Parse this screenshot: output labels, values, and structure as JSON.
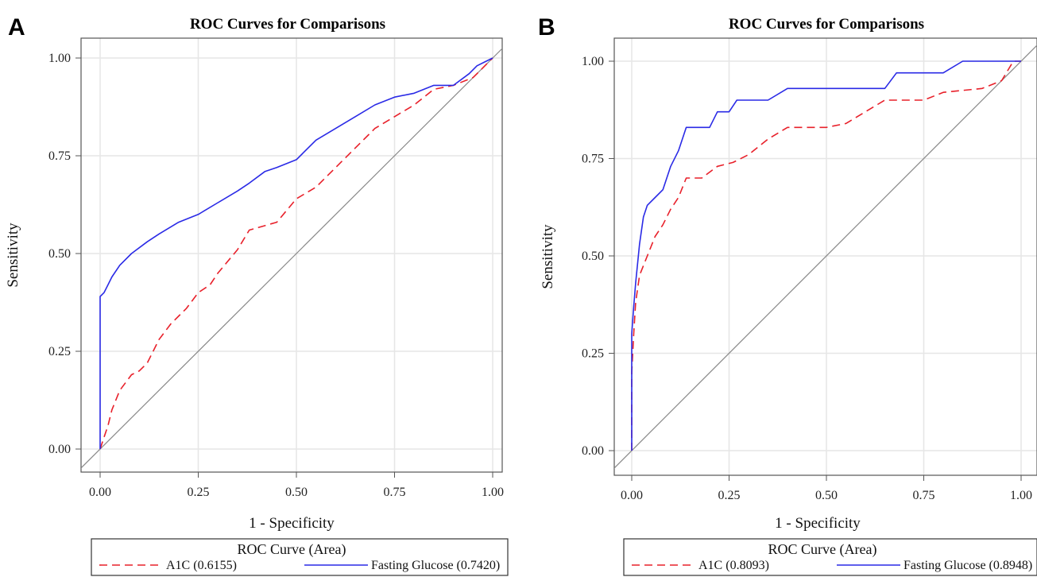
{
  "chart_data": [
    {
      "panel_label": "A",
      "type": "line",
      "title": "ROC Curves for Comparisons",
      "xlabel": "1 - Specificity",
      "ylabel": "Sensitivity",
      "xlim": [
        0,
        1
      ],
      "ylim": [
        0,
        1
      ],
      "x_ticks": [
        "0.00",
        "0.25",
        "0.50",
        "0.75",
        "1.00"
      ],
      "y_ticks": [
        "0.00",
        "0.25",
        "0.50",
        "0.75",
        "1.00"
      ],
      "grid": true,
      "reference_line": "diagonal",
      "legend_title": "ROC Curve (Area)",
      "legend_position": "bottom",
      "series": [
        {
          "name": "A1C",
          "area_label": "(0.6155)",
          "color": "#e8202a",
          "dash": "dashed",
          "points": [
            [
              0,
              0
            ],
            [
              0.01,
              0.03
            ],
            [
              0.02,
              0.06
            ],
            [
              0.03,
              0.1
            ],
            [
              0.05,
              0.15
            ],
            [
              0.08,
              0.19
            ],
            [
              0.1,
              0.2
            ],
            [
              0.12,
              0.22
            ],
            [
              0.15,
              0.28
            ],
            [
              0.18,
              0.32
            ],
            [
              0.22,
              0.36
            ],
            [
              0.25,
              0.4
            ],
            [
              0.28,
              0.42
            ],
            [
              0.3,
              0.45
            ],
            [
              0.35,
              0.51
            ],
            [
              0.38,
              0.56
            ],
            [
              0.45,
              0.58
            ],
            [
              0.5,
              0.64
            ],
            [
              0.55,
              0.67
            ],
            [
              0.6,
              0.72
            ],
            [
              0.65,
              0.77
            ],
            [
              0.7,
              0.82
            ],
            [
              0.75,
              0.85
            ],
            [
              0.8,
              0.88
            ],
            [
              0.85,
              0.92
            ],
            [
              0.9,
              0.93
            ],
            [
              0.95,
              0.95
            ],
            [
              0.97,
              0.97
            ],
            [
              1,
              1
            ]
          ]
        },
        {
          "name": "Fasting Glucose",
          "area_label": "(0.7420)",
          "color": "#2a2ae6",
          "dash": "solid",
          "points": [
            [
              0,
              0
            ],
            [
              0,
              0.39
            ],
            [
              0.01,
              0.4
            ],
            [
              0.02,
              0.42
            ],
            [
              0.03,
              0.44
            ],
            [
              0.05,
              0.47
            ],
            [
              0.08,
              0.5
            ],
            [
              0.12,
              0.53
            ],
            [
              0.15,
              0.55
            ],
            [
              0.2,
              0.58
            ],
            [
              0.25,
              0.6
            ],
            [
              0.3,
              0.63
            ],
            [
              0.35,
              0.66
            ],
            [
              0.38,
              0.68
            ],
            [
              0.42,
              0.71
            ],
            [
              0.45,
              0.72
            ],
            [
              0.5,
              0.74
            ],
            [
              0.55,
              0.79
            ],
            [
              0.6,
              0.82
            ],
            [
              0.65,
              0.85
            ],
            [
              0.7,
              0.88
            ],
            [
              0.75,
              0.9
            ],
            [
              0.8,
              0.91
            ],
            [
              0.85,
              0.93
            ],
            [
              0.9,
              0.93
            ],
            [
              0.94,
              0.96
            ],
            [
              0.96,
              0.98
            ],
            [
              0.98,
              0.99
            ],
            [
              1,
              1
            ]
          ]
        }
      ]
    },
    {
      "panel_label": "B",
      "type": "line",
      "title": "ROC Curves for Comparisons",
      "xlabel": "1 - Specificity",
      "ylabel": "Sensitivity",
      "xlim": [
        0,
        1
      ],
      "ylim": [
        0,
        1
      ],
      "x_ticks": [
        "0.00",
        "0.25",
        "0.50",
        "0.75",
        "1.00"
      ],
      "y_ticks": [
        "0.00",
        "0.25",
        "0.50",
        "0.75",
        "1.00"
      ],
      "grid": true,
      "reference_line": "diagonal",
      "legend_title": "ROC Curve (Area)",
      "legend_position": "bottom",
      "series": [
        {
          "name": "A1C",
          "area_label": "(0.8093)",
          "color": "#e8202a",
          "dash": "dashed",
          "points": [
            [
              0,
              0
            ],
            [
              0,
              0.2
            ],
            [
              0.005,
              0.3
            ],
            [
              0.01,
              0.38
            ],
            [
              0.02,
              0.45
            ],
            [
              0.04,
              0.5
            ],
            [
              0.06,
              0.55
            ],
            [
              0.08,
              0.58
            ],
            [
              0.1,
              0.62
            ],
            [
              0.12,
              0.65
            ],
            [
              0.14,
              0.7
            ],
            [
              0.18,
              0.7
            ],
            [
              0.22,
              0.73
            ],
            [
              0.26,
              0.74
            ],
            [
              0.3,
              0.76
            ],
            [
              0.35,
              0.8
            ],
            [
              0.4,
              0.83
            ],
            [
              0.5,
              0.83
            ],
            [
              0.55,
              0.84
            ],
            [
              0.6,
              0.87
            ],
            [
              0.65,
              0.9
            ],
            [
              0.75,
              0.9
            ],
            [
              0.8,
              0.92
            ],
            [
              0.9,
              0.93
            ],
            [
              0.95,
              0.95
            ],
            [
              0.98,
              1
            ],
            [
              1,
              1
            ]
          ]
        },
        {
          "name": "Fasting Glucose",
          "area_label": "(0.8948)",
          "color": "#2a2ae6",
          "dash": "solid",
          "points": [
            [
              0,
              0
            ],
            [
              0,
              0.3
            ],
            [
              0.005,
              0.37
            ],
            [
              0.01,
              0.43
            ],
            [
              0.02,
              0.53
            ],
            [
              0.03,
              0.6
            ],
            [
              0.04,
              0.63
            ],
            [
              0.06,
              0.65
            ],
            [
              0.08,
              0.67
            ],
            [
              0.1,
              0.73
            ],
            [
              0.12,
              0.77
            ],
            [
              0.14,
              0.83
            ],
            [
              0.2,
              0.83
            ],
            [
              0.22,
              0.87
            ],
            [
              0.25,
              0.87
            ],
            [
              0.27,
              0.9
            ],
            [
              0.3,
              0.9
            ],
            [
              0.35,
              0.9
            ],
            [
              0.4,
              0.93
            ],
            [
              0.65,
              0.93
            ],
            [
              0.68,
              0.97
            ],
            [
              0.8,
              0.97
            ],
            [
              0.85,
              1
            ],
            [
              1,
              1
            ]
          ]
        }
      ]
    }
  ]
}
